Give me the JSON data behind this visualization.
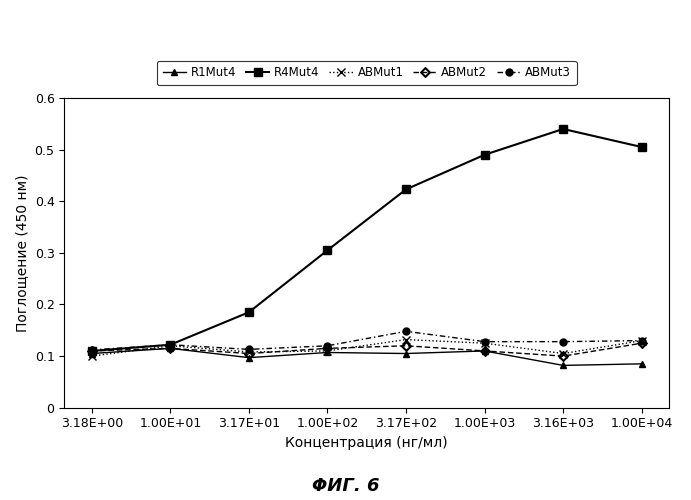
{
  "x_values": [
    3.18,
    10.0,
    31.7,
    100.0,
    317.0,
    1000.0,
    3160.0,
    10000.0
  ],
  "x_labels": [
    "3.18E+00",
    "1.00E+01",
    "3.17E+01",
    "1.00E+02",
    "3.17E+02",
    "1.00E+03",
    "3.16E+03",
    "1.00E+04"
  ],
  "R1Mut4": [
    0.105,
    0.115,
    0.097,
    0.107,
    0.105,
    0.11,
    0.082,
    0.085
  ],
  "R4Mut4": [
    0.11,
    0.122,
    0.185,
    0.305,
    0.423,
    0.49,
    0.54,
    0.505
  ],
  "ABMut1": [
    0.1,
    0.12,
    0.108,
    0.11,
    0.132,
    0.125,
    0.105,
    0.13
  ],
  "ABMut2": [
    0.11,
    0.115,
    0.105,
    0.115,
    0.12,
    0.11,
    0.1,
    0.125
  ],
  "ABMut3": [
    0.112,
    0.122,
    0.113,
    0.12,
    0.148,
    0.128,
    0.128,
    0.13
  ],
  "xlabel": "Концентрация (нг/мл)",
  "ylabel": "Поглощение (450 нм)",
  "caption": "ΦИГ. 6",
  "ylim": [
    0,
    0.6
  ],
  "yticks": [
    0,
    0.1,
    0.2,
    0.3,
    0.4,
    0.5,
    0.6
  ],
  "bg_color": "#ffffff",
  "legend_labels": [
    "R1Mut4",
    "R4Mut4",
    "ABMut1",
    "ABMut2",
    "ABMut3"
  ]
}
